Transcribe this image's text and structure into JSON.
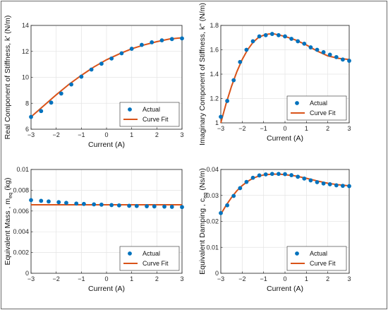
{
  "colors": {
    "actual": "#0072BD",
    "fit": "#D95319"
  },
  "chart_data": [
    {
      "id": "k-real",
      "type": "scatter",
      "xlabel": "Current (A)",
      "ylabel": "Real Component of Stiffness, k' (N/m)",
      "xlim": [
        -3,
        3
      ],
      "ylim": [
        6,
        14
      ],
      "xticks": [
        -3,
        -2,
        -1,
        0,
        1,
        2,
        3
      ],
      "yticks": [
        6,
        8,
        10,
        12,
        14
      ],
      "xtick_labels": [
        "−3",
        "−2",
        "−1",
        "0",
        "1",
        "2",
        "3"
      ],
      "ytick_labels": [
        "6",
        "8",
        "10",
        "12",
        "14"
      ],
      "grid": true,
      "legend_position": "bottom-right",
      "series": [
        {
          "name": "Actual",
          "kind": "scatter",
          "x": [
            -3,
            -2.6,
            -2.2,
            -1.8,
            -1.4,
            -1,
            -0.6,
            -0.2,
            0.2,
            0.6,
            1,
            1.4,
            1.8,
            2.2,
            2.6,
            3
          ],
          "y": [
            6.95,
            7.4,
            8.05,
            8.75,
            9.45,
            10.05,
            10.6,
            11.05,
            11.45,
            11.85,
            12.2,
            12.5,
            12.7,
            12.85,
            12.95,
            13.0
          ]
        },
        {
          "name": "Curve Fit",
          "kind": "line",
          "x": [
            -3,
            -2.5,
            -2,
            -1.5,
            -1,
            -0.5,
            0,
            0.5,
            1,
            1.5,
            2,
            2.5,
            3
          ],
          "y": [
            6.95,
            7.8,
            8.65,
            9.45,
            10.15,
            10.8,
            11.35,
            11.8,
            12.2,
            12.5,
            12.75,
            12.95,
            13.05
          ]
        }
      ]
    },
    {
      "id": "k-imag",
      "type": "scatter",
      "xlabel": "Current (A)",
      "ylabel": "Imaginary Component of Stiffness, k\" (N/m)",
      "xlim": [
        -3,
        3
      ],
      "ylim": [
        1,
        1.8
      ],
      "xticks": [
        -3,
        -2,
        -1,
        0,
        1,
        2,
        3
      ],
      "yticks": [
        1,
        1.2,
        1.4,
        1.6,
        1.8
      ],
      "xtick_labels": [
        "−3",
        "−2",
        "−1",
        "0",
        "1",
        "2",
        "3"
      ],
      "ytick_labels": [
        "1",
        "1.2",
        "1.4",
        "1.6",
        "1.8"
      ],
      "grid": true,
      "legend_position": "bottom-right",
      "series": [
        {
          "name": "Actual",
          "kind": "scatter",
          "x": [
            -3,
            -2.7,
            -2.4,
            -2.1,
            -1.8,
            -1.5,
            -1.2,
            -0.9,
            -0.6,
            -0.3,
            0,
            0.3,
            0.6,
            0.9,
            1.2,
            1.5,
            1.8,
            2.1,
            2.4,
            2.7,
            3
          ],
          "y": [
            1.05,
            1.18,
            1.35,
            1.5,
            1.6,
            1.67,
            1.71,
            1.72,
            1.73,
            1.72,
            1.71,
            1.69,
            1.67,
            1.65,
            1.62,
            1.6,
            1.58,
            1.56,
            1.54,
            1.52,
            1.51
          ]
        },
        {
          "name": "Curve Fit",
          "kind": "line",
          "x": [
            -3,
            -2.75,
            -2.5,
            -2.25,
            -2,
            -1.75,
            -1.5,
            -1.25,
            -1,
            -0.75,
            -0.5,
            -0.25,
            0,
            0.5,
            1,
            1.5,
            2,
            2.5,
            3
          ],
          "y": [
            1.0,
            1.16,
            1.3,
            1.42,
            1.52,
            1.6,
            1.66,
            1.7,
            1.72,
            1.73,
            1.73,
            1.72,
            1.71,
            1.68,
            1.64,
            1.59,
            1.55,
            1.53,
            1.52
          ]
        }
      ]
    },
    {
      "id": "m-eq",
      "type": "scatter",
      "xlabel": "Current (A)",
      "ylabel": "Equivalent Mass , m",
      "ylabel_sub": "eq",
      "ylabel_unit": " (kg)",
      "xlim": [
        -3,
        3
      ],
      "ylim": [
        0,
        0.01
      ],
      "xticks": [
        -3,
        -2,
        -1,
        0,
        1,
        2,
        3
      ],
      "yticks": [
        0,
        0.002,
        0.004,
        0.006,
        0.008,
        0.01
      ],
      "xtick_labels": [
        "−3",
        "−2",
        "−1",
        "0",
        "1",
        "2",
        "3"
      ],
      "ytick_labels": [
        "0",
        "0.002",
        "0.004",
        "0.006",
        "0.008",
        "0.01"
      ],
      "grid": true,
      "legend_position": "bottom-right",
      "series": [
        {
          "name": "Actual",
          "kind": "scatter",
          "x": [
            -3,
            -2.6,
            -2.3,
            -1.9,
            -1.6,
            -1.2,
            -0.9,
            -0.5,
            -0.2,
            0.2,
            0.5,
            0.9,
            1.2,
            1.6,
            1.9,
            2.3,
            2.6,
            3
          ],
          "y": [
            0.00705,
            0.00698,
            0.00692,
            0.00685,
            0.00678,
            0.00672,
            0.00668,
            0.00664,
            0.00661,
            0.00657,
            0.00654,
            0.0065,
            0.00648,
            0.00646,
            0.00644,
            0.00642,
            0.0064,
            0.00638
          ]
        },
        {
          "name": "Curve Fit",
          "kind": "line",
          "x": [
            -3,
            3
          ],
          "y": [
            0.0066,
            0.0066
          ]
        }
      ]
    },
    {
      "id": "c-eq",
      "type": "scatter",
      "xlabel": "Current (A)",
      "ylabel": "Equivalent Damping , c",
      "ylabel_sub": "eq",
      "ylabel_unit": " (Ns/m)",
      "xlim": [
        -3,
        3
      ],
      "ylim": [
        0,
        0.04
      ],
      "xticks": [
        -3,
        -2,
        -1,
        0,
        1,
        2,
        3
      ],
      "yticks": [
        0,
        0.01,
        0.02,
        0.03,
        0.04
      ],
      "xtick_labels": [
        "−3",
        "−2",
        "−1",
        "0",
        "1",
        "2",
        "3"
      ],
      "ytick_labels": [
        "0",
        "0.01",
        "0.02",
        "0.03",
        "0.04"
      ],
      "grid": true,
      "legend_position": "bottom-right",
      "series": [
        {
          "name": "Actual",
          "kind": "scatter",
          "x": [
            -3,
            -2.7,
            -2.4,
            -2.1,
            -1.8,
            -1.5,
            -1.2,
            -0.9,
            -0.6,
            -0.3,
            0,
            0.3,
            0.6,
            0.9,
            1.2,
            1.5,
            1.8,
            2.1,
            2.4,
            2.7,
            3
          ],
          "y": [
            0.0232,
            0.0262,
            0.0298,
            0.0328,
            0.0352,
            0.0368,
            0.0377,
            0.0381,
            0.0383,
            0.0383,
            0.0382,
            0.0378,
            0.0372,
            0.0365,
            0.0358,
            0.0351,
            0.0346,
            0.0343,
            0.0339,
            0.0337,
            0.0336
          ]
        },
        {
          "name": "Curve Fit",
          "kind": "line",
          "x": [
            -3,
            -2.75,
            -2.5,
            -2.25,
            -2,
            -1.75,
            -1.5,
            -1.25,
            -1,
            -0.75,
            -0.5,
            -0.25,
            0,
            0.5,
            1,
            1.5,
            2,
            2.5,
            3
          ],
          "y": [
            0.0228,
            0.0262,
            0.0292,
            0.0318,
            0.0338,
            0.0354,
            0.0366,
            0.0374,
            0.0379,
            0.0381,
            0.0382,
            0.0382,
            0.038,
            0.0375,
            0.0366,
            0.0356,
            0.0347,
            0.0341,
            0.0337
          ]
        }
      ]
    }
  ]
}
